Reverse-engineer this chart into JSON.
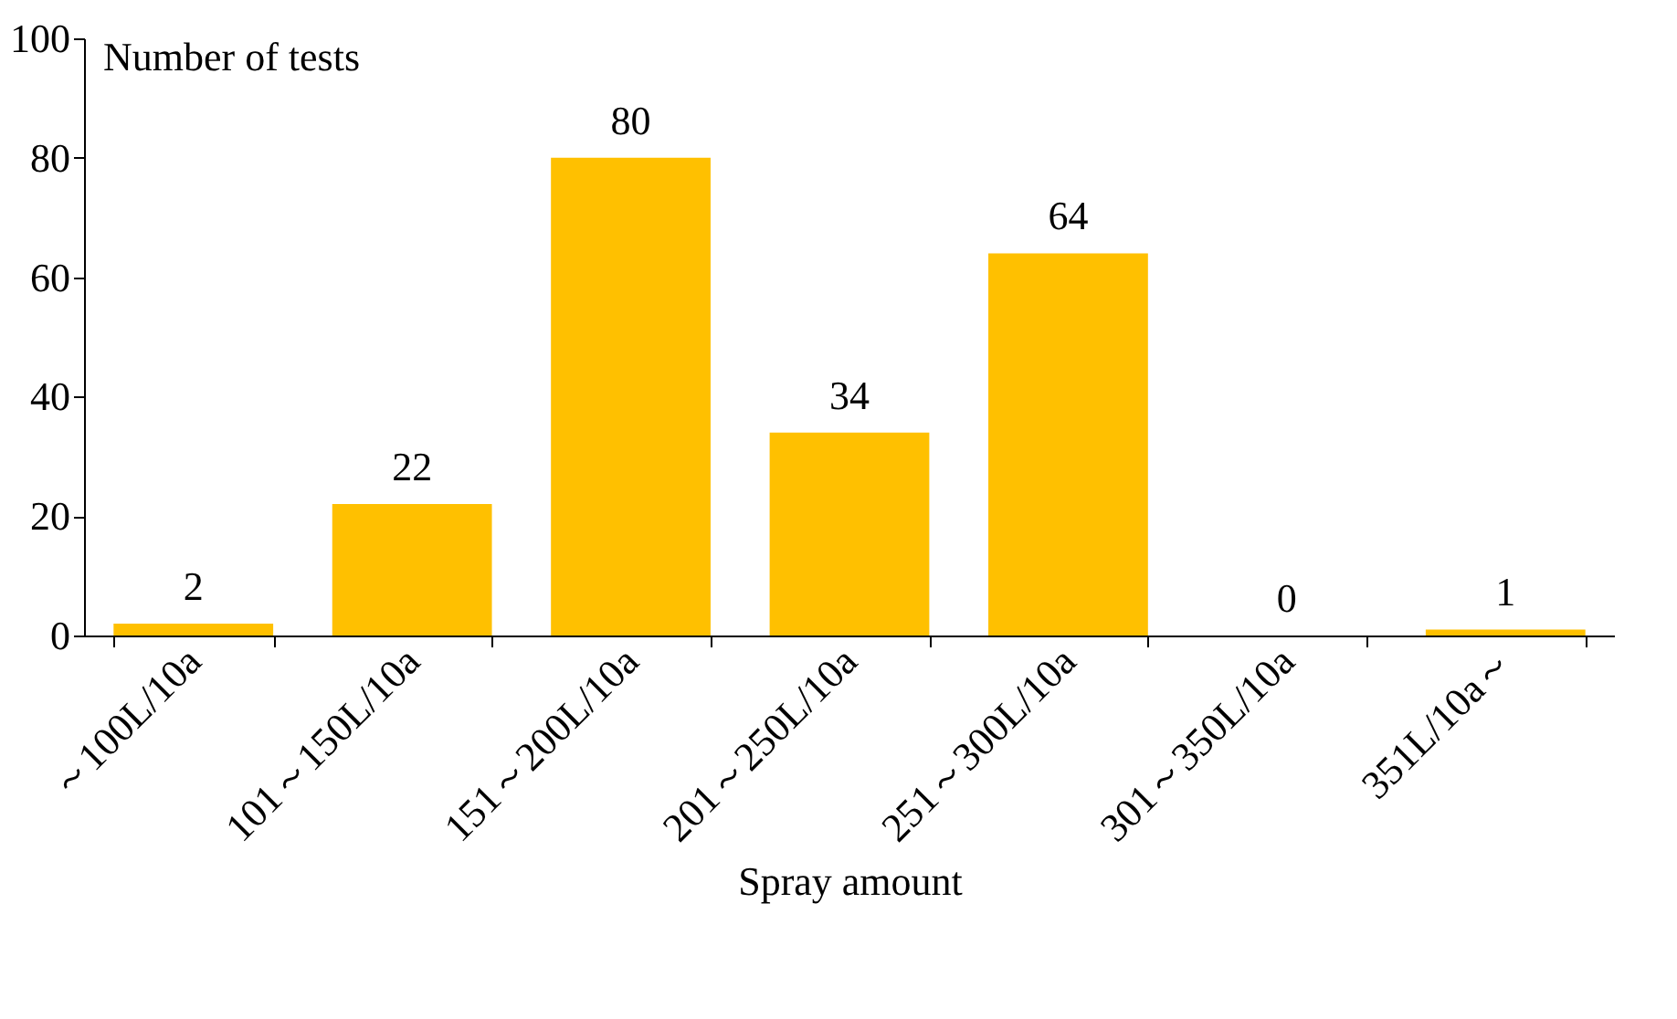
{
  "chart_data": {
    "type": "bar",
    "xlabel": "Spray amount",
    "ylabel": "Number of tests",
    "categories": [
      "～100L/10a",
      "101～150L/10a",
      "151～200L/10a",
      "201～250L/10a",
      "251～300L/10a",
      "301～350L/10a",
      "351L/10a～"
    ],
    "values": [
      2,
      22,
      80,
      34,
      64,
      0,
      1
    ],
    "color": "#ffc000",
    "data_labels": true,
    "ylim": [
      0,
      100
    ],
    "yticks": [
      0,
      20,
      40,
      60,
      80,
      100
    ],
    "grid": false
  }
}
